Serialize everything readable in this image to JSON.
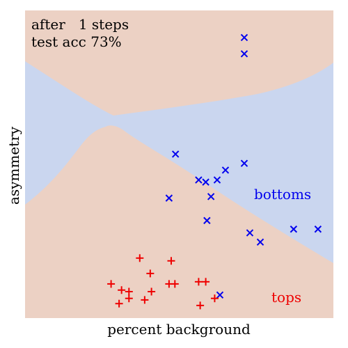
{
  "chart_data": {
    "type": "scatter",
    "xlabel": "percent background",
    "ylabel": "asymmetry",
    "xlim": [
      0,
      100
    ],
    "ylim": [
      0,
      100
    ],
    "grid": false,
    "info": {
      "line1": "after   1 steps",
      "line2": "test acc 73%"
    },
    "region_colors": {
      "tops": "#ecd1c4",
      "bottoms": "#cad6ef"
    },
    "series": [
      {
        "name": "bottoms",
        "marker": "x",
        "color": "#0000ee",
        "points": [
          [
            71.1,
            85.9
          ],
          [
            71.1,
            91.2
          ],
          [
            48.8,
            53.3
          ],
          [
            56.3,
            44.9
          ],
          [
            58.6,
            44.2
          ],
          [
            62.3,
            44.9
          ],
          [
            65.0,
            48.1
          ],
          [
            71.1,
            50.3
          ],
          [
            60.3,
            39.5
          ],
          [
            46.7,
            39.0
          ],
          [
            59.0,
            31.7
          ],
          [
            72.9,
            27.7
          ],
          [
            76.3,
            24.7
          ],
          [
            87.1,
            28.9
          ],
          [
            95.0,
            28.9
          ],
          [
            63.2,
            7.5
          ]
        ]
      },
      {
        "name": "tops",
        "marker": "+",
        "color": "#ee0000",
        "points": [
          [
            37.2,
            19.5
          ],
          [
            47.4,
            18.6
          ],
          [
            40.6,
            14.5
          ],
          [
            27.9,
            11.1
          ],
          [
            31.3,
            9.1
          ],
          [
            33.7,
            8.6
          ],
          [
            46.7,
            11.1
          ],
          [
            48.6,
            11.1
          ],
          [
            56.3,
            11.8
          ],
          [
            58.6,
            11.8
          ],
          [
            41.0,
            8.6
          ],
          [
            33.7,
            6.4
          ],
          [
            30.5,
            4.7
          ],
          [
            38.8,
            5.9
          ],
          [
            56.8,
            4.1
          ],
          [
            61.5,
            6.4
          ]
        ]
      }
    ],
    "region_labels": {
      "bottoms": "bottoms",
      "tops": "tops"
    }
  }
}
